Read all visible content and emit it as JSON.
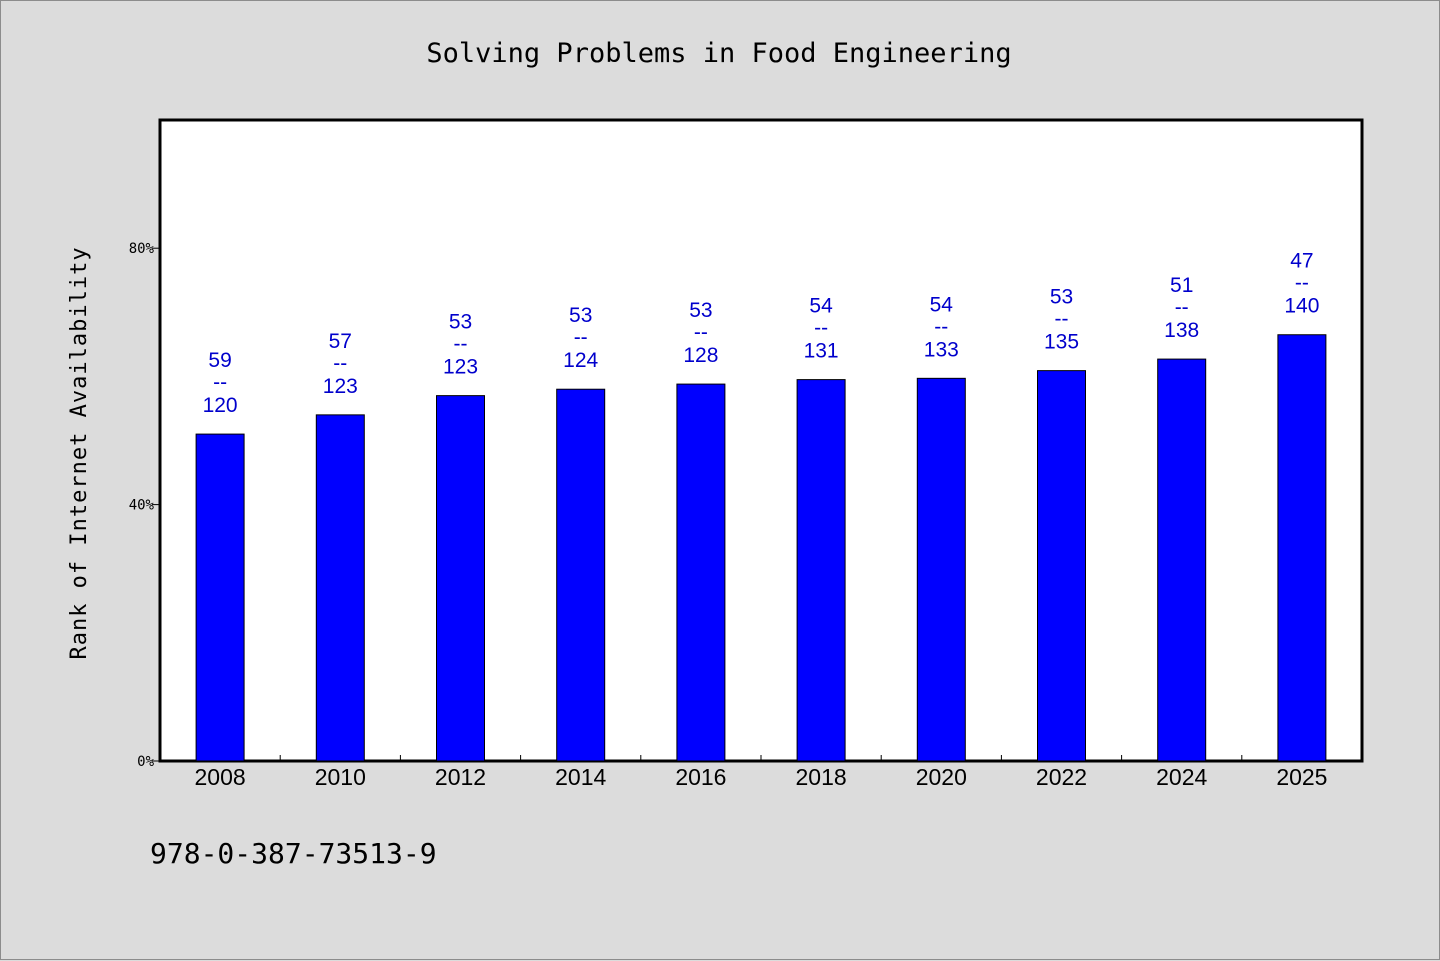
{
  "chart_data": {
    "type": "bar",
    "title": "Solving Problems in Food Engineering",
    "xlabel": "",
    "ylabel": "Rank of Internet Availability",
    "ylim": [
      0,
      100
    ],
    "y_ticks": [
      {
        "value": 0,
        "label": "0%"
      },
      {
        "value": 40,
        "label": "40%"
      },
      {
        "value": 80,
        "label": "80%"
      }
    ],
    "grid": false,
    "bar_color": "#0000ff",
    "label_color": "#0000cc",
    "categories": [
      "2008",
      "2010",
      "2012",
      "2014",
      "2016",
      "2018",
      "2020",
      "2022",
      "2024",
      "2025"
    ],
    "values": [
      51,
      54,
      57,
      58,
      58.8,
      59.5,
      59.7,
      60.9,
      62.7,
      66.5
    ],
    "data_labels": [
      {
        "top": "59",
        "sep": "--",
        "bottom": "120"
      },
      {
        "top": "57",
        "sep": "--",
        "bottom": "123"
      },
      {
        "top": "53",
        "sep": "--",
        "bottom": "123"
      },
      {
        "top": "53",
        "sep": "--",
        "bottom": "124"
      },
      {
        "top": "53",
        "sep": "--",
        "bottom": "128"
      },
      {
        "top": "54",
        "sep": "--",
        "bottom": "131"
      },
      {
        "top": "54",
        "sep": "--",
        "bottom": "133"
      },
      {
        "top": "53",
        "sep": "--",
        "bottom": "135"
      },
      {
        "top": "51",
        "sep": "--",
        "bottom": "138"
      },
      {
        "top": "47",
        "sep": "--",
        "bottom": "140"
      }
    ]
  },
  "footer": {
    "isbn": "978-0-387-73513-9"
  }
}
